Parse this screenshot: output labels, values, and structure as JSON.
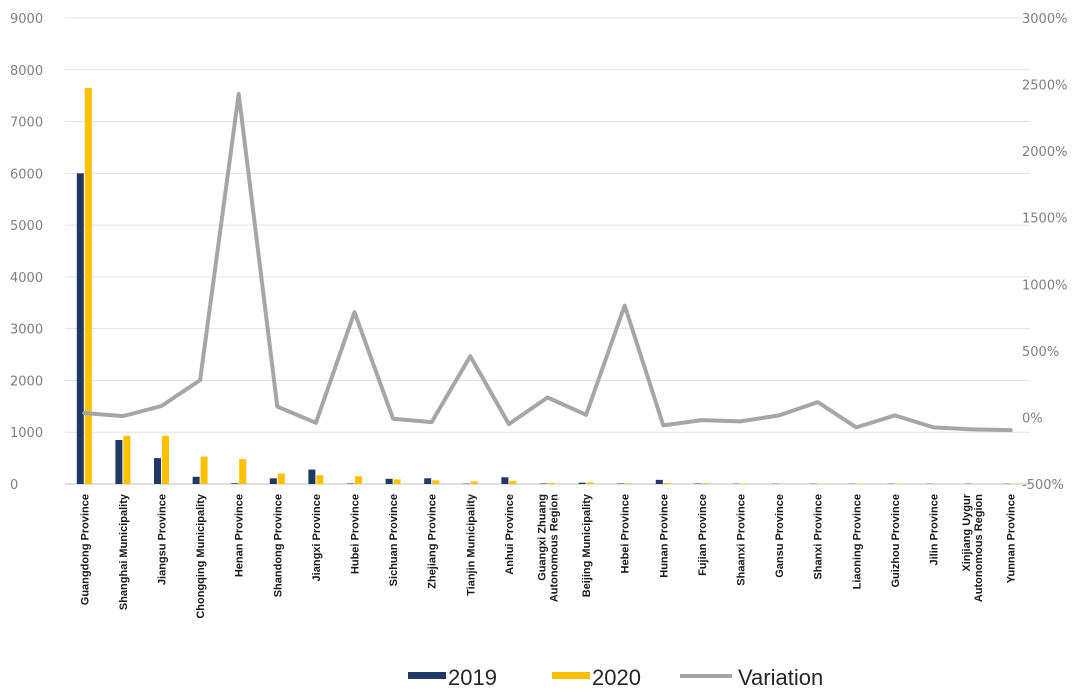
{
  "chart_data": {
    "type": "bar",
    "categories": [
      "Guangdong Province",
      "Shanghai Municipality",
      "Jiangsu Province",
      "Chongqing Municipality",
      "Henan Province",
      "Shandong Province",
      "Jiangxi Province",
      "Hubei Province",
      "Sichuan Province",
      "Zhejiang Province",
      "Tianjin Municipality",
      "Anhui Province",
      "Guangxi Zhuang Autonomous Region",
      "Beijing Municipality",
      "Hebei Province",
      "Hunan Province",
      "Fujian Province",
      "Shaanxi Province",
      "Gansu Province",
      "Shanxi Province",
      "Liaoning Province",
      "Guizhou Province",
      "Jilin Province",
      "Xinjiang Uygur Autonomous Region",
      "Yunnan Province"
    ],
    "series": [
      {
        "name": "2019",
        "axis": "left",
        "color": "#1f3864",
        "values": [
          6000,
          850,
          500,
          140,
          15,
          110,
          280,
          10,
          100,
          110,
          8,
          130,
          10,
          25,
          10,
          80,
          10,
          5,
          5,
          5,
          5,
          5,
          5,
          5,
          5
        ]
      },
      {
        "name": "2020",
        "axis": "left",
        "color": "#ffc000",
        "values": [
          7650,
          930,
          930,
          530,
          480,
          200,
          170,
          150,
          90,
          70,
          50,
          60,
          20,
          30,
          15,
          20,
          15,
          10,
          5,
          5,
          5,
          5,
          5,
          5,
          5
        ]
      },
      {
        "name": "Variation",
        "axis": "right",
        "type": "line",
        "color": "#a6a6a6",
        "values": [
          33,
          10,
          86,
          280,
          2430,
          81,
          -40,
          790,
          -10,
          -35,
          460,
          -50,
          150,
          20,
          840,
          -60,
          -20,
          -30,
          15,
          115,
          -75,
          15,
          -75,
          -90,
          -95
        ]
      }
    ],
    "y_left": {
      "ylim": [
        0,
        9000
      ],
      "ticks": [
        "0",
        "1000",
        "2000",
        "3000",
        "4000",
        "5000",
        "6000",
        "7000",
        "8000",
        "9000"
      ]
    },
    "y_right": {
      "ylim": [
        -500,
        3000
      ],
      "ticks": [
        "-500%",
        "0%",
        "500%",
        "1000%",
        "1500%",
        "2000%",
        "2500%",
        "3000%"
      ]
    },
    "grid": true,
    "legend": "bottom",
    "title": "",
    "xlabel": "",
    "ylabel": ""
  }
}
